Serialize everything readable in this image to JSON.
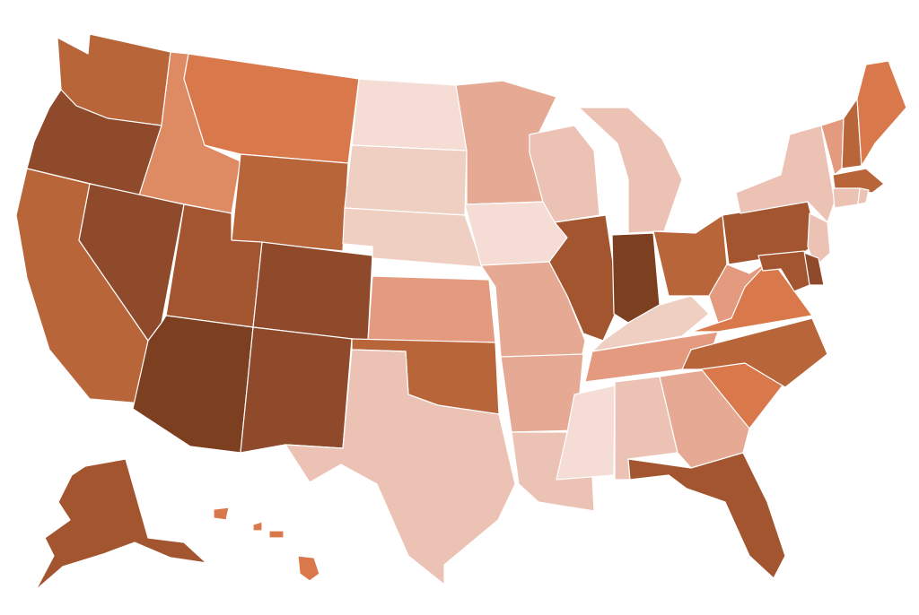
{
  "map": {
    "type": "choropleth",
    "region": "United States",
    "palette": {
      "c1": "#f5ddd6",
      "c2": "#f0cfc3",
      "c3": "#ecc2b4",
      "c4": "#e6aa94",
      "c5": "#e39a7f",
      "c6": "#de8a63",
      "c7": "#d9784a",
      "c8": "#b9653a",
      "c9": "#a35530",
      "c10": "#8e4a2a",
      "c11": "#7c4020"
    },
    "states": [
      {
        "id": "WA",
        "level": "c8"
      },
      {
        "id": "OR",
        "level": "c10"
      },
      {
        "id": "CA",
        "level": "c8"
      },
      {
        "id": "ID",
        "level": "c6"
      },
      {
        "id": "NV",
        "level": "c10"
      },
      {
        "id": "MT",
        "level": "c7"
      },
      {
        "id": "WY",
        "level": "c8"
      },
      {
        "id": "UT",
        "level": "c9"
      },
      {
        "id": "AZ",
        "level": "c11"
      },
      {
        "id": "CO",
        "level": "c10"
      },
      {
        "id": "NM",
        "level": "c10"
      },
      {
        "id": "ND",
        "level": "c1"
      },
      {
        "id": "SD",
        "level": "c2"
      },
      {
        "id": "NE",
        "level": "c2"
      },
      {
        "id": "KS",
        "level": "c5"
      },
      {
        "id": "OK",
        "level": "c8"
      },
      {
        "id": "TX",
        "level": "c3"
      },
      {
        "id": "MN",
        "level": "c4"
      },
      {
        "id": "IA",
        "level": "c1"
      },
      {
        "id": "MO",
        "level": "c4"
      },
      {
        "id": "AR",
        "level": "c4"
      },
      {
        "id": "LA",
        "level": "c3"
      },
      {
        "id": "WI",
        "level": "c3"
      },
      {
        "id": "IL",
        "level": "c9"
      },
      {
        "id": "MS",
        "level": "c1"
      },
      {
        "id": "MI",
        "level": "c3"
      },
      {
        "id": "IN",
        "level": "c11"
      },
      {
        "id": "KY",
        "level": "c2"
      },
      {
        "id": "TN",
        "level": "c5"
      },
      {
        "id": "AL",
        "level": "c3"
      },
      {
        "id": "OH",
        "level": "c8"
      },
      {
        "id": "GA",
        "level": "c4"
      },
      {
        "id": "FL",
        "level": "c9"
      },
      {
        "id": "SC",
        "level": "c7"
      },
      {
        "id": "NC",
        "level": "c8"
      },
      {
        "id": "VA",
        "level": "c7"
      },
      {
        "id": "WV",
        "level": "c5"
      },
      {
        "id": "PA",
        "level": "c9"
      },
      {
        "id": "NY",
        "level": "c3"
      },
      {
        "id": "NJ",
        "level": "c3"
      },
      {
        "id": "DE",
        "level": "c10"
      },
      {
        "id": "MD",
        "level": "c9"
      },
      {
        "id": "VT",
        "level": "c5"
      },
      {
        "id": "NH",
        "level": "c8"
      },
      {
        "id": "ME",
        "level": "c7"
      },
      {
        "id": "MA",
        "level": "c8"
      },
      {
        "id": "CT",
        "level": "c3"
      },
      {
        "id": "RI",
        "level": "c3"
      },
      {
        "id": "AK",
        "level": "c9"
      },
      {
        "id": "HI",
        "level": "c7"
      }
    ]
  }
}
